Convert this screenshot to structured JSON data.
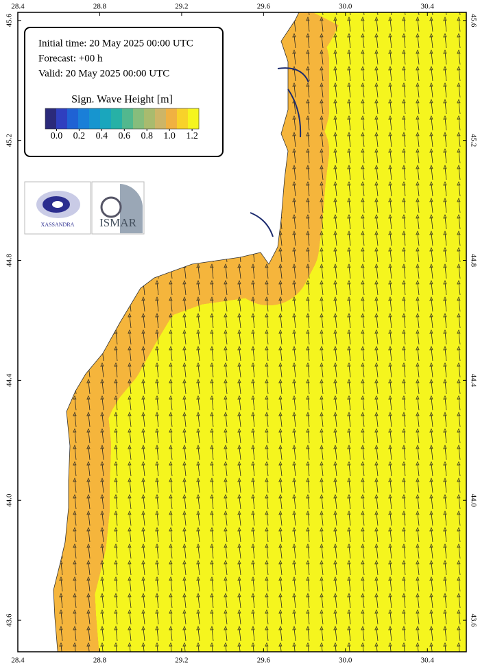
{
  "header": {
    "initial_time": "Initial time: 20 May 2025 00:00 UTC",
    "forecast": "Forecast: +00 h",
    "valid": "Valid: 20 May 2025 00:00 UTC"
  },
  "colorbar": {
    "title": "Sign. Wave Height [m]",
    "range": [
      -0.1,
      1.26
    ],
    "ticks": [
      {
        "value": 0,
        "label": "0.0"
      },
      0.2,
      0.4,
      0.6,
      0.8,
      {
        "value": 1,
        "label": "1.0"
      },
      1.2
    ],
    "colors": [
      "#2b2a7a",
      "#2f3fbf",
      "#1f62d4",
      "#1a7fd8",
      "#1795cf",
      "#1aa6bd",
      "#27b1a6",
      "#52b88e",
      "#86bd7c",
      "#a9bb6e",
      "#cdb567",
      "#f0b142",
      "#f8d22a",
      "#f5f51e"
    ]
  },
  "map": {
    "xlim": [
      28.4,
      30.59
    ],
    "ylim": [
      43.495,
      45.627
    ],
    "xticks": [
      28.4,
      28.8,
      29.2,
      29.6,
      {
        "value": 30,
        "label": "30.0"
      },
      30.4
    ],
    "yticks": [
      43.6,
      {
        "value": 44,
        "label": "44.0"
      },
      44.4,
      44.8,
      45.2,
      45.6
    ]
  },
  "logos": [
    "XASSANDRA",
    "ISMAR"
  ]
}
